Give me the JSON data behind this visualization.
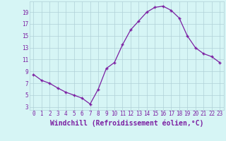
{
  "x": [
    0,
    1,
    2,
    3,
    4,
    5,
    6,
    7,
    8,
    9,
    10,
    11,
    12,
    13,
    14,
    15,
    16,
    17,
    18,
    19,
    20,
    21,
    22,
    23
  ],
  "y": [
    8.5,
    7.5,
    7.0,
    6.2,
    5.5,
    5.0,
    4.5,
    3.5,
    6.0,
    9.5,
    10.5,
    13.5,
    16.0,
    17.5,
    19.0,
    19.8,
    20.0,
    19.3,
    18.0,
    15.0,
    13.0,
    12.0,
    11.5,
    10.5
  ],
  "line_color": "#7B1FA2",
  "marker": "+",
  "bg_color": "#d6f5f5",
  "grid_color": "#b0d0d8",
  "axis_color": "#7B1FA2",
  "xlabel": "Windchill (Refroidissement éolien,°C)",
  "xlabel_color": "#7B1FA2",
  "xlim": [
    -0.5,
    23.5
  ],
  "ylim": [
    2.5,
    20.8
  ],
  "xticks": [
    0,
    1,
    2,
    3,
    4,
    5,
    6,
    7,
    8,
    9,
    10,
    11,
    12,
    13,
    14,
    15,
    16,
    17,
    18,
    19,
    20,
    21,
    22,
    23
  ],
  "yticks": [
    3,
    5,
    7,
    9,
    11,
    13,
    15,
    17,
    19
  ],
  "tick_fontsize": 5.5,
  "xlabel_fontsize": 7.0
}
